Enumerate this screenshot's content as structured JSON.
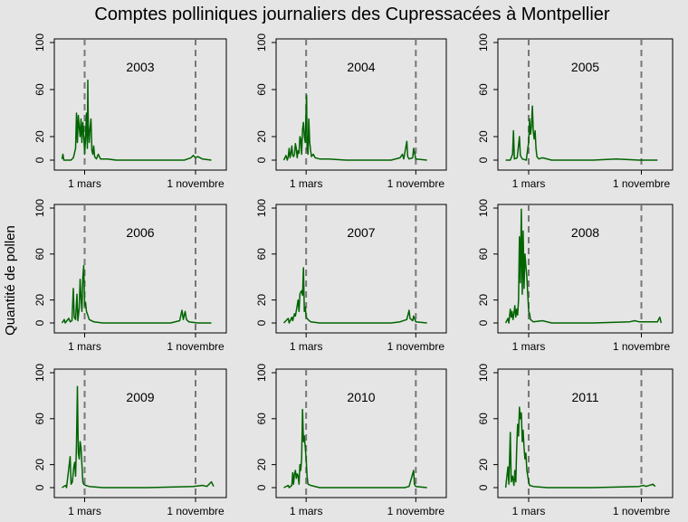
{
  "title": "Comptes polliniques journaliers des Cupressacées à Montpellier",
  "ylabel": "Quantité de pollen",
  "colors": {
    "background": "#e5e5e5",
    "line": "#006400",
    "vline": "#777777",
    "axis": "#000000"
  },
  "chart_data": {
    "type": "line",
    "layout": "3x3 small multiples",
    "ylim": [
      0,
      100
    ],
    "yticks": [
      0,
      20,
      60,
      100
    ],
    "xlim_days": [
      1,
      365
    ],
    "xticks": [
      {
        "label": "1 mars",
        "day": 60
      },
      {
        "label": "1 novembre",
        "day": 305
      }
    ],
    "reference_lines": [
      "1 mars",
      "1 novembre"
    ],
    "grid": false,
    "panels": [
      {
        "year": "2003",
        "points": [
          [
            10,
            1
          ],
          [
            12,
            5
          ],
          [
            14,
            0
          ],
          [
            30,
            0
          ],
          [
            35,
            2
          ],
          [
            40,
            10
          ],
          [
            42,
            40
          ],
          [
            44,
            15
          ],
          [
            46,
            38
          ],
          [
            48,
            28
          ],
          [
            50,
            20
          ],
          [
            52,
            35
          ],
          [
            54,
            15
          ],
          [
            56,
            32
          ],
          [
            58,
            22
          ],
          [
            60,
            5
          ],
          [
            62,
            18
          ],
          [
            64,
            40
          ],
          [
            66,
            10
          ],
          [
            67,
            68
          ],
          [
            68,
            30
          ],
          [
            70,
            15
          ],
          [
            72,
            28
          ],
          [
            74,
            35
          ],
          [
            76,
            8
          ],
          [
            78,
            5
          ],
          [
            80,
            12
          ],
          [
            82,
            3
          ],
          [
            86,
            1
          ],
          [
            90,
            5
          ],
          [
            95,
            1
          ],
          [
            110,
            1
          ],
          [
            130,
            0
          ],
          [
            200,
            0
          ],
          [
            280,
            0
          ],
          [
            295,
            2
          ],
          [
            300,
            4
          ],
          [
            305,
            2
          ],
          [
            310,
            3
          ],
          [
            320,
            1
          ],
          [
            340,
            0
          ]
        ]
      },
      {
        "year": "2004",
        "points": [
          [
            10,
            0
          ],
          [
            15,
            4
          ],
          [
            18,
            0
          ],
          [
            20,
            3
          ],
          [
            22,
            10
          ],
          [
            24,
            2
          ],
          [
            26,
            6
          ],
          [
            28,
            12
          ],
          [
            30,
            4
          ],
          [
            32,
            3
          ],
          [
            34,
            5
          ],
          [
            36,
            14
          ],
          [
            38,
            10
          ],
          [
            40,
            2
          ],
          [
            42,
            8
          ],
          [
            44,
            6
          ],
          [
            46,
            20
          ],
          [
            48,
            18
          ],
          [
            50,
            5
          ],
          [
            52,
            26
          ],
          [
            54,
            32
          ],
          [
            56,
            20
          ],
          [
            58,
            15
          ],
          [
            60,
            45
          ],
          [
            61,
            55
          ],
          [
            62,
            10
          ],
          [
            64,
            5
          ],
          [
            66,
            35
          ],
          [
            68,
            15
          ],
          [
            70,
            8
          ],
          [
            72,
            3
          ],
          [
            76,
            5
          ],
          [
            80,
            2
          ],
          [
            90,
            1
          ],
          [
            110,
            1
          ],
          [
            150,
            0
          ],
          [
            250,
            0
          ],
          [
            270,
            2
          ],
          [
            275,
            5
          ],
          [
            278,
            1
          ],
          [
            285,
            16
          ],
          [
            287,
            3
          ],
          [
            290,
            1
          ],
          [
            298,
            2
          ],
          [
            300,
            10
          ],
          [
            305,
            1
          ],
          [
            330,
            0
          ]
        ]
      },
      {
        "year": "2005",
        "points": [
          [
            10,
            0
          ],
          [
            20,
            0
          ],
          [
            25,
            5
          ],
          [
            27,
            25
          ],
          [
            29,
            1
          ],
          [
            35,
            2
          ],
          [
            40,
            20
          ],
          [
            42,
            4
          ],
          [
            46,
            1
          ],
          [
            55,
            0
          ],
          [
            58,
            10
          ],
          [
            60,
            15
          ],
          [
            62,
            35
          ],
          [
            64,
            22
          ],
          [
            66,
            28
          ],
          [
            68,
            46
          ],
          [
            70,
            24
          ],
          [
            72,
            18
          ],
          [
            74,
            25
          ],
          [
            76,
            10
          ],
          [
            78,
            3
          ],
          [
            82,
            1
          ],
          [
            90,
            2
          ],
          [
            110,
            0
          ],
          [
            200,
            0
          ],
          [
            250,
            1
          ],
          [
            300,
            0
          ],
          [
            340,
            0
          ]
        ]
      },
      {
        "year": "2006",
        "points": [
          [
            10,
            0
          ],
          [
            15,
            3
          ],
          [
            17,
            0
          ],
          [
            25,
            4
          ],
          [
            28,
            1
          ],
          [
            32,
            2
          ],
          [
            35,
            30
          ],
          [
            37,
            5
          ],
          [
            40,
            3
          ],
          [
            43,
            25
          ],
          [
            45,
            2
          ],
          [
            48,
            13
          ],
          [
            50,
            38
          ],
          [
            52,
            22
          ],
          [
            54,
            10
          ],
          [
            56,
            40
          ],
          [
            58,
            50
          ],
          [
            60,
            15
          ],
          [
            62,
            18
          ],
          [
            64,
            10
          ],
          [
            66,
            8
          ],
          [
            70,
            3
          ],
          [
            80,
            1
          ],
          [
            100,
            0
          ],
          [
            150,
            0
          ],
          [
            250,
            0
          ],
          [
            270,
            2
          ],
          [
            275,
            11
          ],
          [
            278,
            3
          ],
          [
            282,
            10
          ],
          [
            285,
            3
          ],
          [
            290,
            1
          ],
          [
            310,
            0
          ],
          [
            340,
            0
          ]
        ]
      },
      {
        "year": "2007",
        "points": [
          [
            10,
            0
          ],
          [
            20,
            4
          ],
          [
            22,
            0
          ],
          [
            28,
            5
          ],
          [
            30,
            2
          ],
          [
            34,
            8
          ],
          [
            36,
            6
          ],
          [
            40,
            15
          ],
          [
            42,
            20
          ],
          [
            44,
            10
          ],
          [
            46,
            25
          ],
          [
            48,
            27
          ],
          [
            50,
            28
          ],
          [
            52,
            24
          ],
          [
            54,
            48
          ],
          [
            56,
            10
          ],
          [
            58,
            14
          ],
          [
            60,
            5
          ],
          [
            64,
            3
          ],
          [
            70,
            1
          ],
          [
            90,
            0
          ],
          [
            150,
            0
          ],
          [
            250,
            0
          ],
          [
            270,
            1
          ],
          [
            285,
            3
          ],
          [
            290,
            11
          ],
          [
            292,
            4
          ],
          [
            298,
            2
          ],
          [
            300,
            6
          ],
          [
            305,
            1
          ],
          [
            330,
            0
          ]
        ]
      },
      {
        "year": "2008",
        "points": [
          [
            10,
            0
          ],
          [
            15,
            4
          ],
          [
            17,
            0
          ],
          [
            20,
            12
          ],
          [
            22,
            5
          ],
          [
            24,
            10
          ],
          [
            26,
            3
          ],
          [
            28,
            8
          ],
          [
            30,
            15
          ],
          [
            32,
            5
          ],
          [
            34,
            12
          ],
          [
            36,
            7
          ],
          [
            38,
            20
          ],
          [
            40,
            75
          ],
          [
            42,
            35
          ],
          [
            44,
            99
          ],
          [
            46,
            25
          ],
          [
            48,
            80
          ],
          [
            50,
            30
          ],
          [
            52,
            60
          ],
          [
            54,
            50
          ],
          [
            56,
            40
          ],
          [
            58,
            25
          ],
          [
            60,
            10
          ],
          [
            62,
            8
          ],
          [
            64,
            3
          ],
          [
            70,
            1
          ],
          [
            90,
            2
          ],
          [
            110,
            0
          ],
          [
            200,
            0
          ],
          [
            280,
            1
          ],
          [
            290,
            2
          ],
          [
            300,
            1
          ],
          [
            340,
            1
          ],
          [
            345,
            5
          ],
          [
            348,
            0
          ]
        ]
      },
      {
        "year": "2009",
        "points": [
          [
            10,
            0
          ],
          [
            18,
            2
          ],
          [
            20,
            0
          ],
          [
            28,
            27
          ],
          [
            30,
            3
          ],
          [
            33,
            5
          ],
          [
            36,
            18
          ],
          [
            38,
            22
          ],
          [
            40,
            10
          ],
          [
            42,
            38
          ],
          [
            44,
            88
          ],
          [
            46,
            30
          ],
          [
            48,
            25
          ],
          [
            50,
            40
          ],
          [
            52,
            35
          ],
          [
            54,
            20
          ],
          [
            56,
            5
          ],
          [
            58,
            3
          ],
          [
            62,
            2
          ],
          [
            70,
            1
          ],
          [
            100,
            0
          ],
          [
            200,
            0
          ],
          [
            300,
            1
          ],
          [
            320,
            2
          ],
          [
            330,
            1
          ],
          [
            340,
            5
          ],
          [
            345,
            1
          ]
        ]
      },
      {
        "year": "2010",
        "points": [
          [
            10,
            0
          ],
          [
            20,
            2
          ],
          [
            22,
            0
          ],
          [
            28,
            2
          ],
          [
            30,
            13
          ],
          [
            32,
            3
          ],
          [
            34,
            12
          ],
          [
            36,
            15
          ],
          [
            38,
            8
          ],
          [
            40,
            12
          ],
          [
            42,
            10
          ],
          [
            44,
            3
          ],
          [
            46,
            20
          ],
          [
            48,
            15
          ],
          [
            50,
            25
          ],
          [
            52,
            68
          ],
          [
            54,
            40
          ],
          [
            56,
            45
          ],
          [
            58,
            35
          ],
          [
            60,
            25
          ],
          [
            62,
            10
          ],
          [
            64,
            3
          ],
          [
            70,
            2
          ],
          [
            90,
            0
          ],
          [
            150,
            0
          ],
          [
            250,
            0
          ],
          [
            280,
            0
          ],
          [
            290,
            1
          ],
          [
            300,
            15
          ],
          [
            302,
            3
          ],
          [
            305,
            1
          ],
          [
            330,
            0
          ]
        ]
      },
      {
        "year": "2011",
        "points": [
          [
            10,
            0
          ],
          [
            15,
            18
          ],
          [
            17,
            3
          ],
          [
            20,
            48
          ],
          [
            22,
            5
          ],
          [
            25,
            10
          ],
          [
            28,
            2
          ],
          [
            30,
            15
          ],
          [
            32,
            5
          ],
          [
            34,
            35
          ],
          [
            36,
            55
          ],
          [
            38,
            45
          ],
          [
            40,
            70
          ],
          [
            42,
            60
          ],
          [
            44,
            65
          ],
          [
            46,
            40
          ],
          [
            48,
            50
          ],
          [
            50,
            35
          ],
          [
            52,
            25
          ],
          [
            54,
            30
          ],
          [
            56,
            15
          ],
          [
            58,
            10
          ],
          [
            60,
            5
          ],
          [
            62,
            2
          ],
          [
            70,
            1
          ],
          [
            100,
            0
          ],
          [
            200,
            0
          ],
          [
            300,
            1
          ],
          [
            310,
            2
          ],
          [
            315,
            1
          ],
          [
            330,
            3
          ],
          [
            335,
            1
          ]
        ]
      }
    ]
  }
}
